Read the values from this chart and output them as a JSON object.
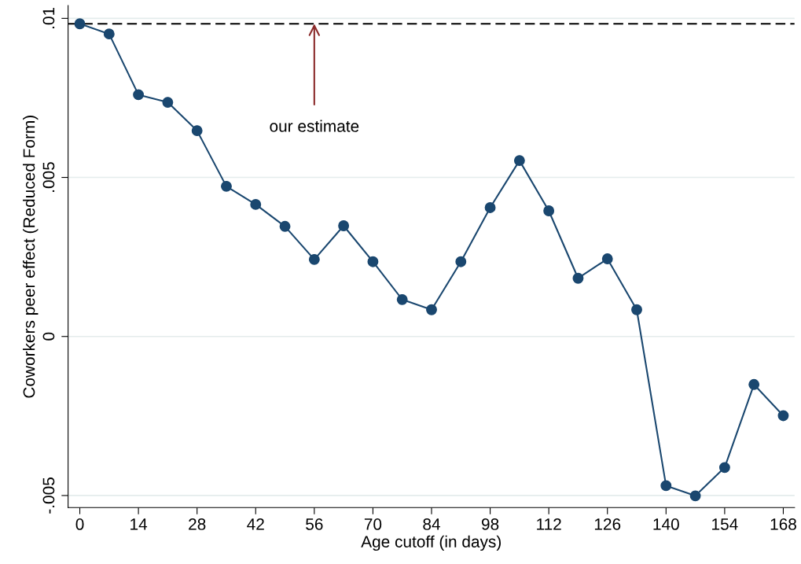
{
  "chart_data": {
    "type": "line",
    "xlabel": "Age cutoff (in days)",
    "ylabel": "Coworkers peer effect (Reduced Form)",
    "x": [
      0,
      7,
      14,
      21,
      28,
      35,
      42,
      49,
      56,
      63,
      70,
      77,
      84,
      91,
      98,
      105,
      112,
      119,
      126,
      133,
      140,
      147,
      154,
      161,
      168
    ],
    "series": [
      {
        "color": "#1a476f",
        "values": [
          0.00983,
          0.00951,
          0.0076,
          0.00736,
          0.00647,
          0.00472,
          0.00415,
          0.00346,
          0.00242,
          0.00348,
          0.00235,
          0.00116,
          0.00084,
          0.00235,
          0.00405,
          0.00553,
          0.00395,
          0.00183,
          0.00244,
          0.00084,
          -0.00469,
          -0.00501,
          -0.00412,
          -0.00151,
          -0.00249
        ]
      }
    ],
    "marker": "circle",
    "line_style": "solid",
    "xlim": [
      -2.8,
      170.7
    ],
    "xticks": [
      0,
      14,
      28,
      42,
      56,
      70,
      84,
      98,
      112,
      126,
      140,
      154,
      168
    ],
    "ylim": [
      -0.00538,
      0.0104
    ],
    "yticks": [
      {
        "value": 0.01,
        "label": ".01"
      },
      {
        "value": 0.005,
        "label": ".005"
      },
      0,
      {
        "value": -0.005,
        "label": "-.005"
      }
    ],
    "grid": "y",
    "ref_lines": [
      {
        "axis": "y",
        "value": 0.00983,
        "color": "#000000",
        "line_style": "dashed"
      }
    ],
    "annotations": [
      {
        "text": "our estimate",
        "x": 56,
        "y": 0.00983
      }
    ]
  }
}
